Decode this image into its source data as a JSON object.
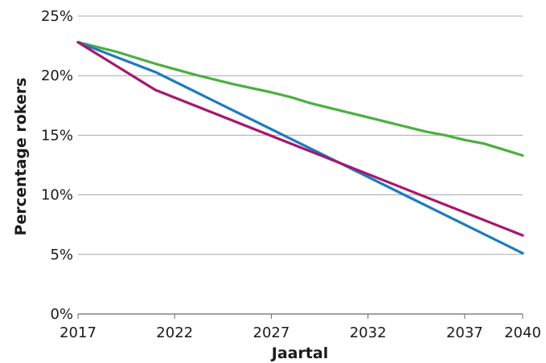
{
  "chart_data": {
    "type": "line",
    "title": "",
    "xlabel": "Jaartal",
    "ylabel": "Percentage rokers",
    "xlim": [
      2017,
      2040
    ],
    "ylim": [
      0,
      25
    ],
    "x_ticks": [
      2017,
      2022,
      2027,
      2032,
      2037,
      2040
    ],
    "x_tick_labels": [
      "2017",
      "2022",
      "2027",
      "2032",
      "2037",
      "2040"
    ],
    "y_ticks": [
      0,
      5,
      10,
      15,
      20,
      25
    ],
    "y_tick_labels": [
      "0%",
      "5%",
      "10%",
      "15%",
      "20%",
      "25%"
    ],
    "grid": "horizontal",
    "legend": "none",
    "series": [
      {
        "color": "#4caf3f",
        "x": [
          2017,
          2019,
          2021,
          2023,
          2025,
          2027,
          2028,
          2029,
          2030,
          2031,
          2032,
          2033,
          2034,
          2035,
          2036,
          2037,
          2038,
          2039,
          2040
        ],
        "values": [
          22.8,
          22.0,
          21.0,
          20.1,
          19.3,
          18.6,
          18.2,
          17.7,
          17.3,
          16.9,
          16.5,
          16.1,
          15.7,
          15.3,
          15.0,
          14.6,
          14.3,
          13.8,
          13.3
        ]
      },
      {
        "color": "#1b7bc1",
        "x": [
          2017,
          2021,
          2040
        ],
        "values": [
          22.8,
          20.3,
          5.1
        ]
      },
      {
        "color": "#a8176d",
        "x": [
          2017,
          2021,
          2040
        ],
        "values": [
          22.8,
          18.8,
          6.6
        ]
      }
    ]
  }
}
